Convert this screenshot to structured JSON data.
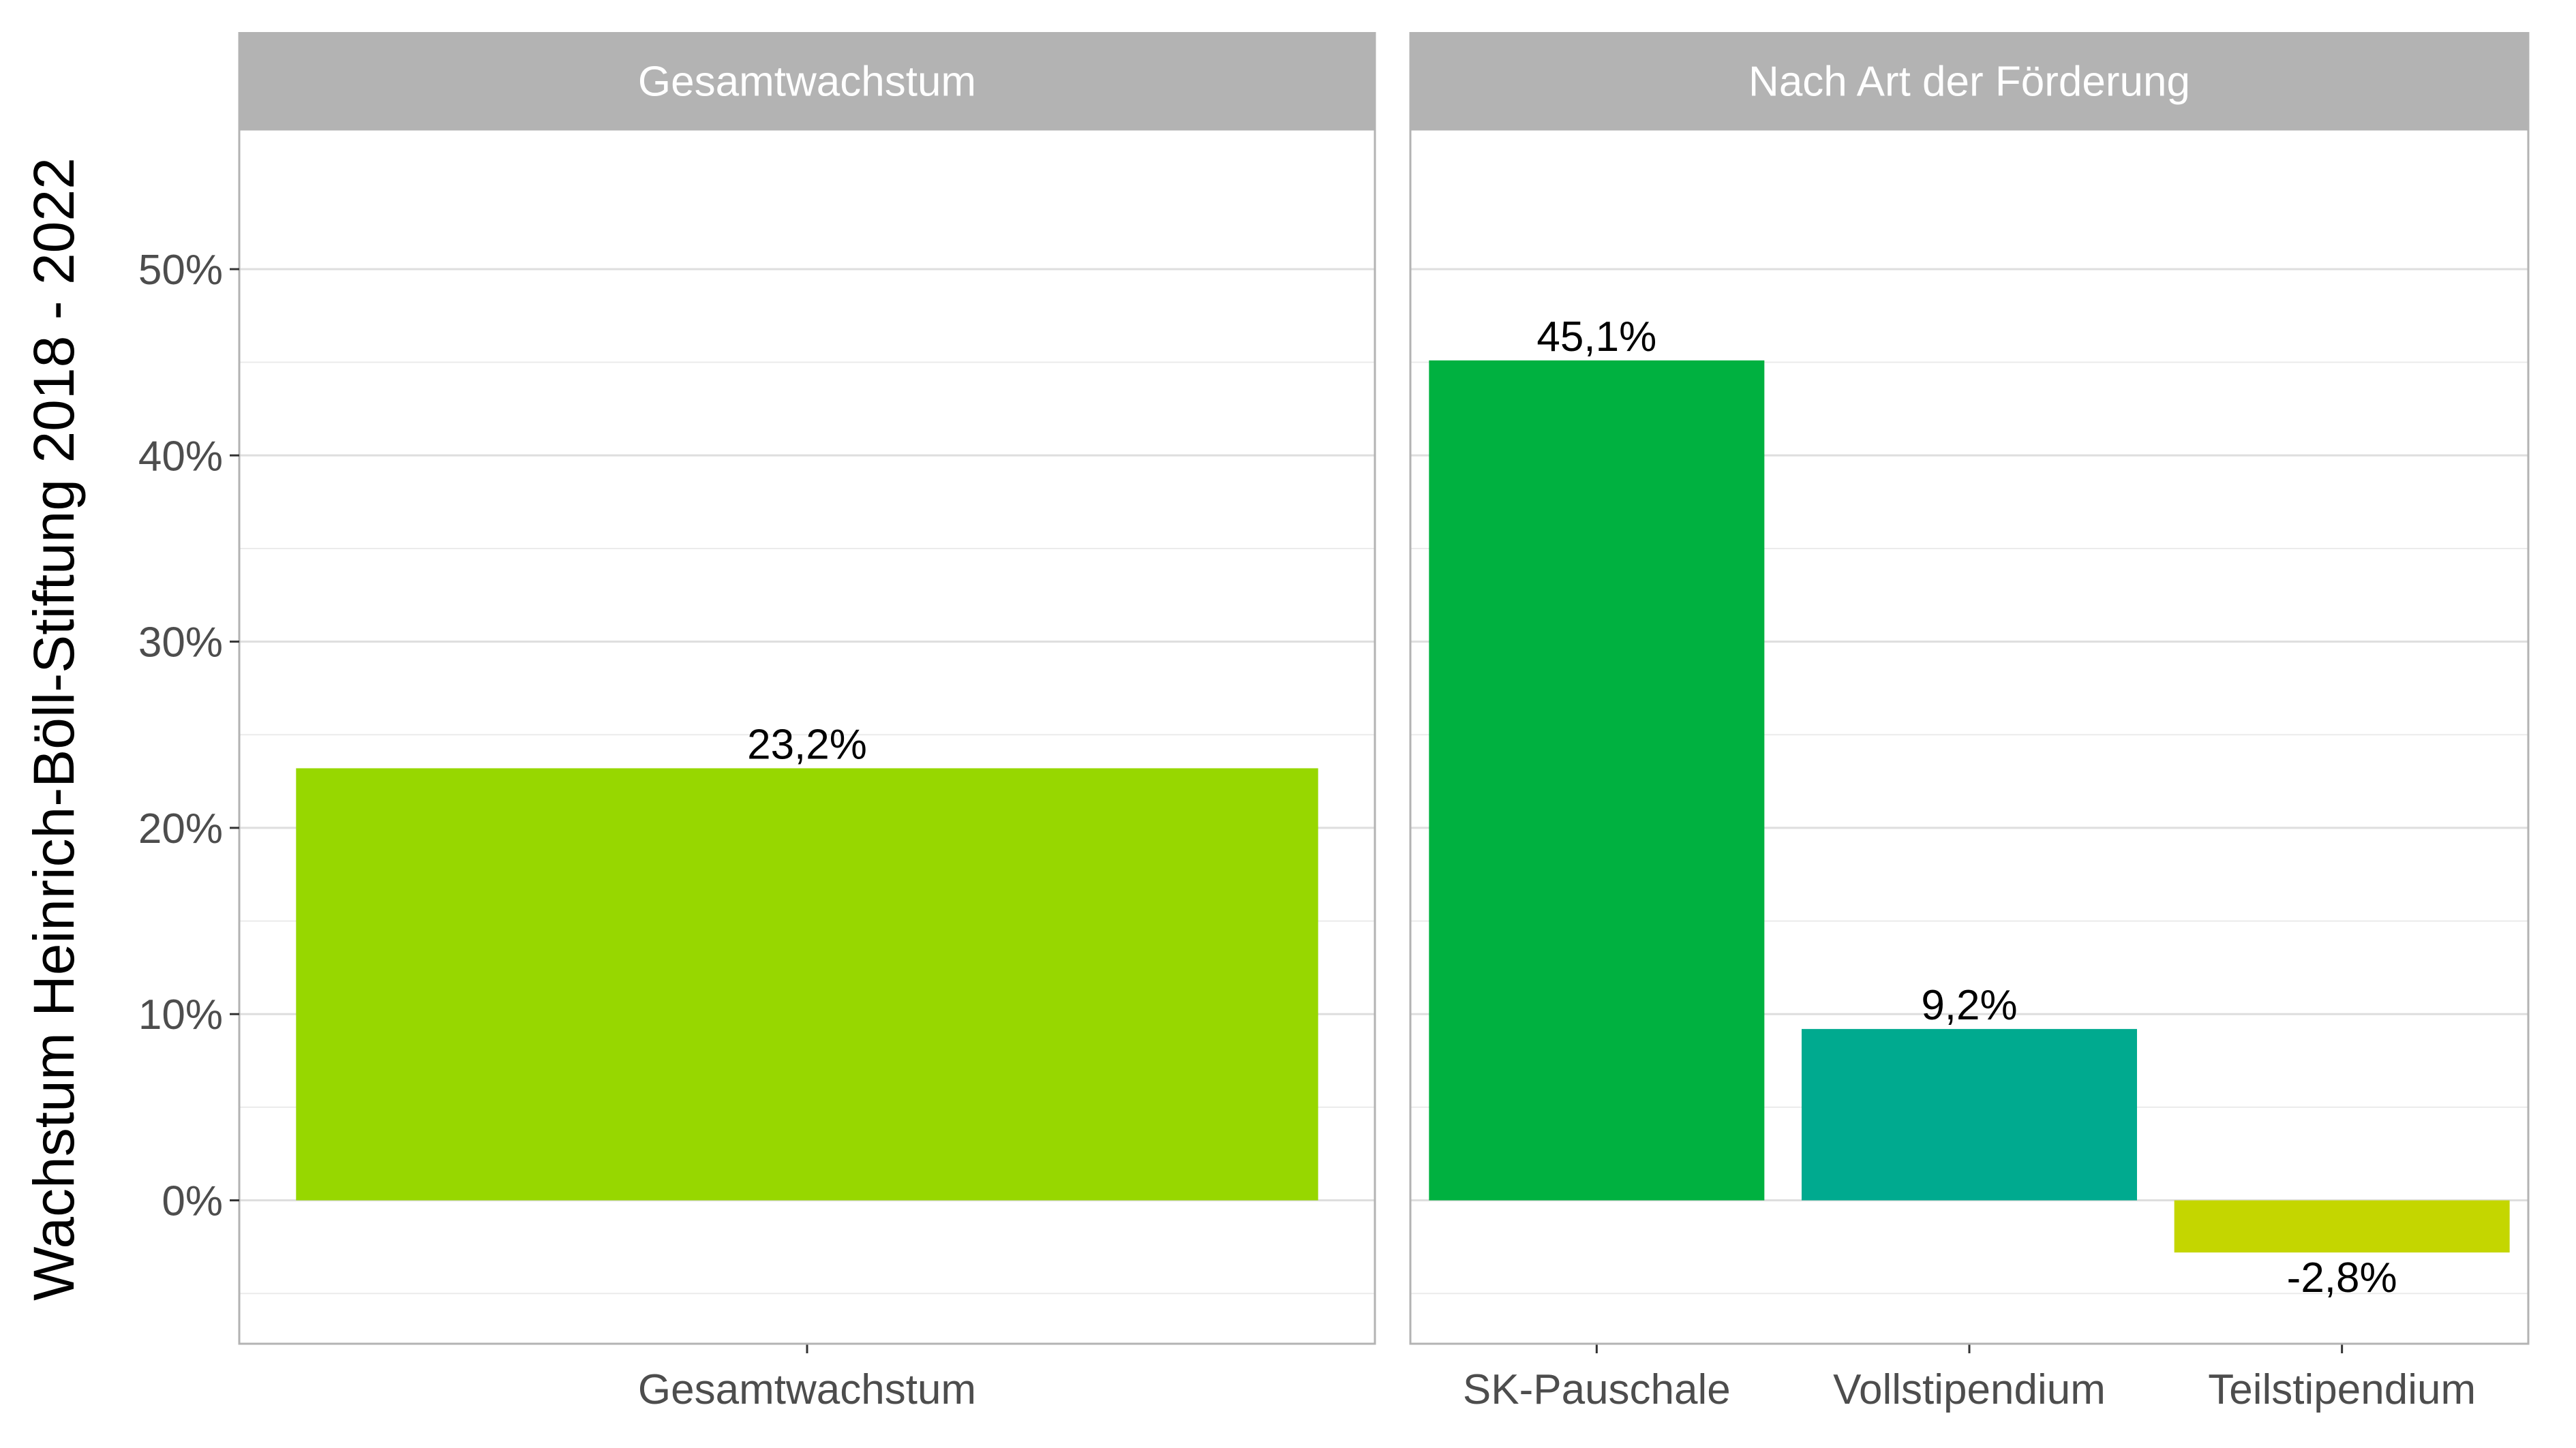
{
  "chart_data": {
    "type": "bar",
    "ylabel": "Wachstum Heinrich-Böll-Stiftung 2018 - 2022",
    "ylim": [
      -7.7,
      57.5
    ],
    "yticks": [
      0,
      10,
      20,
      30,
      40,
      50
    ],
    "ytick_labels": [
      "0%",
      "10%",
      "20%",
      "30%",
      "40%",
      "50%"
    ],
    "grid": true,
    "panels": [
      {
        "title": "Gesamtwachstum",
        "categories": [
          "Gesamtwachstum"
        ],
        "values": [
          23.2
        ],
        "labels": [
          "23,2%"
        ],
        "colors": [
          "#97d700"
        ]
      },
      {
        "title": "Nach Art der Förderung",
        "categories": [
          "SK-Pauschale",
          "Vollstipendium",
          "Teilstipendium"
        ],
        "values": [
          45.1,
          9.2,
          -2.8
        ],
        "labels": [
          "45,1%",
          "9,2%",
          "-2,8%"
        ],
        "colors": [
          "#00b140",
          "#00aa8f",
          "#c4d600"
        ]
      }
    ]
  }
}
